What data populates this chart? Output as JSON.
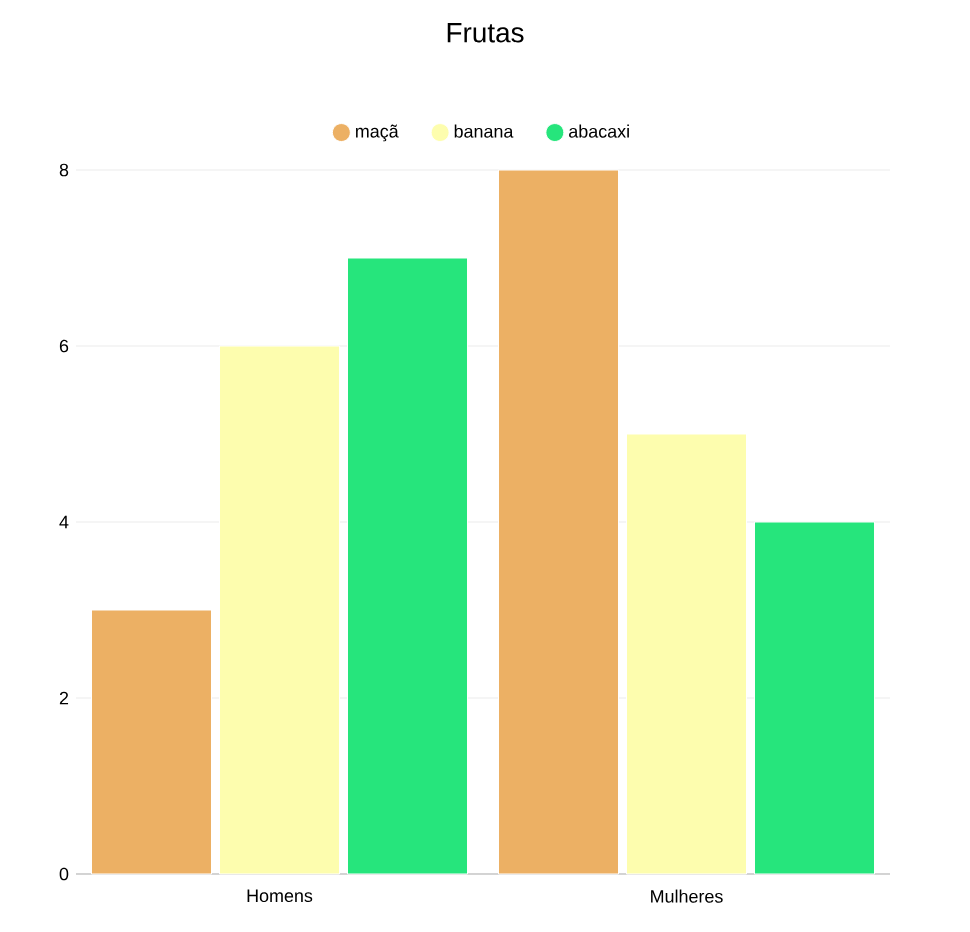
{
  "chart_data": {
    "type": "bar",
    "title": "Frutas",
    "categories": [
      "Homens",
      "Mulheres"
    ],
    "series": [
      {
        "name": "maçã",
        "color": "#ecb064",
        "values": [
          3,
          8
        ]
      },
      {
        "name": "banana",
        "color": "#fdfdae",
        "values": [
          6,
          5
        ]
      },
      {
        "name": "abacaxi",
        "color": "#26e57c",
        "values": [
          7,
          4
        ]
      }
    ],
    "ylim": [
      0,
      8
    ],
    "yticks": [
      0,
      2,
      4,
      6,
      8
    ],
    "grid": "y",
    "legend": "top"
  }
}
